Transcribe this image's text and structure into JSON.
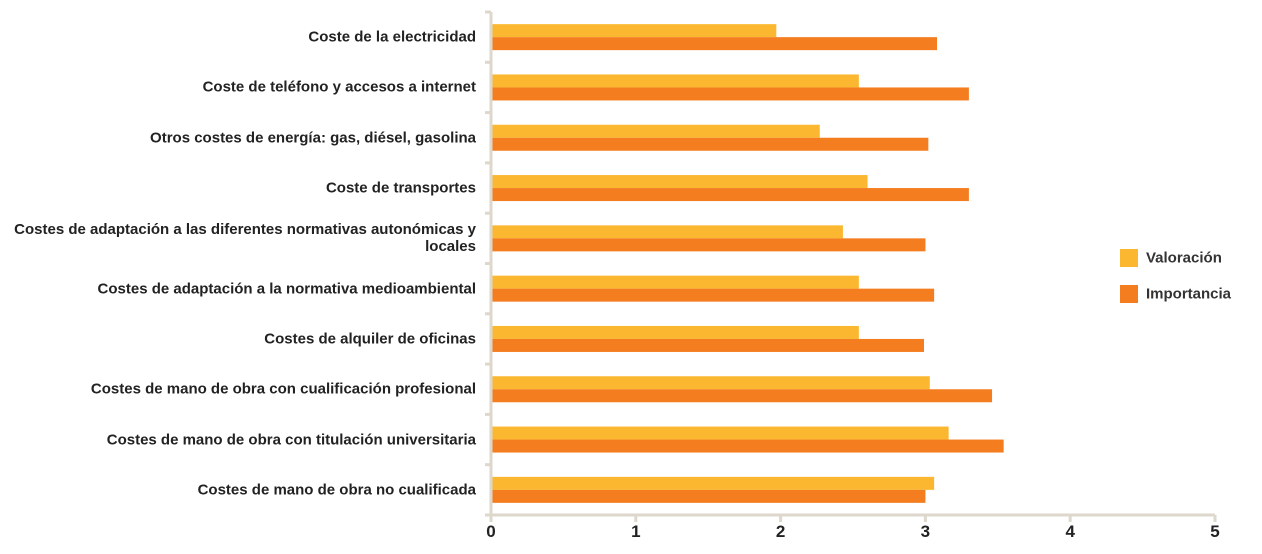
{
  "chart_data": {
    "type": "hbar",
    "categories": [
      "Coste de la electricidad",
      "Coste de teléfono y accesos a internet",
      "Otros costes de energía: gas, diésel, gasolina",
      "Coste de transportes",
      "Costes de adaptación a las diferentes normativas autonómicas y locales",
      "Costes de adaptación a la normativa medioambiental",
      "Costes de alquiler de oficinas",
      "Costes de mano de obra con cualificación profesional",
      "Costes de mano de obra con titulación universitaria",
      "Costes de mano de obra no cualificada"
    ],
    "series": [
      {
        "name": "Valoración",
        "color": "#fbb72f",
        "values": [
          1.96,
          2.53,
          2.26,
          2.59,
          2.42,
          2.53,
          2.53,
          3.02,
          3.15,
          3.05
        ]
      },
      {
        "name": "Importancia",
        "color": "#f47d20",
        "values": [
          3.07,
          3.29,
          3.01,
          3.29,
          2.99,
          3.05,
          2.98,
          3.45,
          3.53,
          2.99
        ]
      }
    ],
    "xlim": [
      0,
      5
    ],
    "xticks": [
      0,
      1,
      2,
      3,
      4,
      5
    ],
    "legend": "right"
  }
}
